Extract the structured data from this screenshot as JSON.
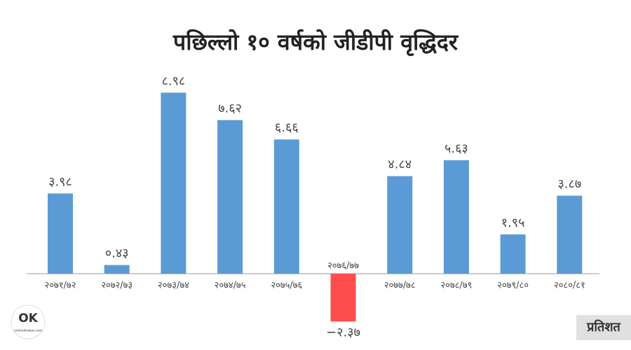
{
  "chart_data": {
    "type": "bar",
    "title": "पछिल्लो १० वर्षको जीडीपी वृद्धिदर",
    "unit_label": "प्रतिशत",
    "logo": {
      "mark": "OK",
      "site": "onlinekhabar.com"
    },
    "categories": [
      "२०७१/७२",
      "२०७२/७३",
      "२०७३/७४",
      "२०७४/७५",
      "२०७५/७६",
      "२०७६/७७",
      "२०७७/७८",
      "२०७८/७९",
      "२०७९/८०",
      "२०८०/८१"
    ],
    "values": [
      3.98,
      0.43,
      8.98,
      7.62,
      6.66,
      -2.37,
      4.84,
      5.63,
      1.95,
      3.87
    ],
    "value_labels": [
      "३.९८",
      "०.४३",
      "८.९८",
      "७.६२",
      "६.६६",
      "−२.३७",
      "४.८४",
      "५.६३",
      "१.९५",
      "३.८७"
    ],
    "color": "#5b9bd5",
    "negative_color": "#ff4d4d"
  }
}
